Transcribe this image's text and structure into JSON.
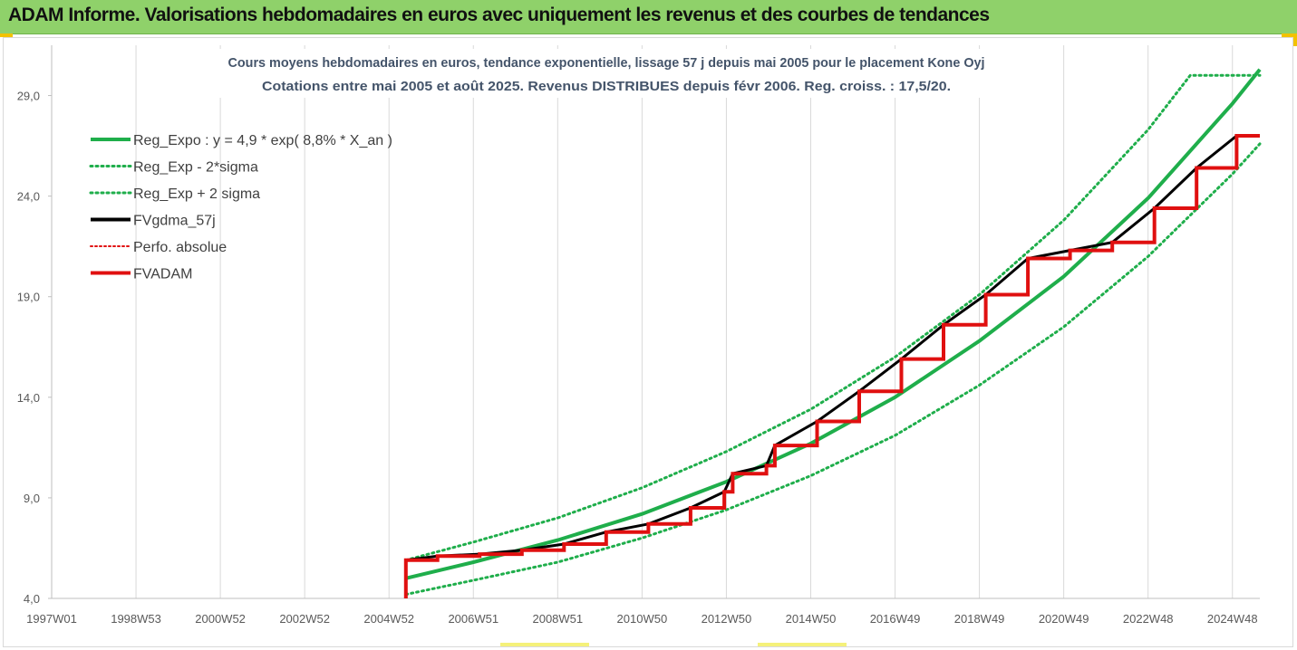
{
  "banner": {
    "title": "ADAM Informe. Valorisations hebdomadaires en euros avec uniquement les revenus et des courbes de tendances"
  },
  "colors": {
    "banner_bg": "#8fd16a",
    "reg_expo": "#1fae4b",
    "reg_exp_band": "#1fae4b",
    "fvgdma": "#000000",
    "perfo": "#e01010",
    "fvadam": "#e01010"
  },
  "chart_data": {
    "type": "line",
    "title": [
      "Cours moyens hebdomadaires en euros, tendance exponentielle, lissage 57 j depuis mai 2005 pour le placement Kone Oyj",
      "Cotations entre mai 2005 et août 2025. Revenus DISTRIBUES depuis févr 2006. Reg. croiss. : 17,5/20."
    ],
    "xlabel": "",
    "ylabel": "",
    "x_range": [
      1997.0,
      2025.65
    ],
    "ylim": [
      4.0,
      31.5
    ],
    "y_ticks": [
      "4,0",
      "9,0",
      "14,0",
      "19,0",
      "24,0",
      "29,0"
    ],
    "y_tick_values": [
      4,
      9,
      14,
      19,
      24,
      29
    ],
    "x_ticks": [
      "1997W01",
      "1998W53",
      "2000W52",
      "2002W52",
      "2004W52",
      "2006W51",
      "2008W51",
      "2010W50",
      "2012W50",
      "2014W50",
      "2016W49",
      "2018W49",
      "2020W49",
      "2022W48",
      "2024W48"
    ],
    "x_tick_values": [
      1997.0,
      1999.0,
      2001.0,
      2003.0,
      2005.0,
      2007.0,
      2009.0,
      2011.0,
      2013.0,
      2015.0,
      2017.0,
      2019.0,
      2021.0,
      2023.0,
      2025.0
    ],
    "grid": "vertical",
    "legend_position": "top-left",
    "series": [
      {
        "name": "Reg_Expo : y = 4,9 * exp( 8,8% *  X_an )",
        "style": "solid-thick-green",
        "x": [
          2005.4,
          2007,
          2009,
          2011,
          2013,
          2015,
          2017,
          2019,
          2021,
          2023,
          2025,
          2025.65
        ],
        "values": [
          5.0,
          5.8,
          6.9,
          8.2,
          9.8,
          11.7,
          14.0,
          16.8,
          20.0,
          23.9,
          28.6,
          30.3
        ]
      },
      {
        "name": "Reg_Exp - 2*sigma",
        "style": "dotted-green",
        "x": [
          2005.4,
          2007,
          2009,
          2011,
          2013,
          2015,
          2017,
          2019,
          2021,
          2023,
          2025,
          2025.65
        ],
        "values": [
          4.2,
          4.9,
          5.8,
          7.0,
          8.4,
          10.1,
          12.1,
          14.6,
          17.5,
          21.0,
          25.1,
          26.6
        ]
      },
      {
        "name": "Reg_Exp + 2 sigma",
        "style": "dotted-green",
        "x": [
          2005.4,
          2007,
          2009,
          2011,
          2013,
          2015,
          2017,
          2019,
          2021,
          2023,
          2024.0,
          2025.65
        ],
        "values": [
          5.9,
          6.8,
          8.0,
          9.5,
          11.3,
          13.4,
          16.0,
          19.1,
          22.8,
          27.3,
          30.0,
          30.0
        ]
      },
      {
        "name": "FVgdma_57j",
        "style": "solid-black",
        "x": [
          2005.4,
          2006.15,
          2007.15,
          2008.15,
          2009.15,
          2010.15,
          2011.15,
          2012.15,
          2012.95,
          2013.15,
          2013.95,
          2014.15,
          2015.15,
          2016.15,
          2017.15,
          2018.15,
          2019.15,
          2020.15,
          2021.15,
          2022.15,
          2023.15,
          2024.15,
          2025.1,
          2025.65
        ],
        "values": [
          5.9,
          6.1,
          6.2,
          6.4,
          6.7,
          7.3,
          7.7,
          8.5,
          9.3,
          10.2,
          10.6,
          11.6,
          12.8,
          14.3,
          15.9,
          17.6,
          19.1,
          20.9,
          21.3,
          21.7,
          23.4,
          25.4,
          27.0,
          27.0
        ]
      },
      {
        "name": "Perfo. absolue",
        "style": "dotted-red",
        "x": [],
        "values": []
      },
      {
        "name": "FVADAM",
        "style": "step-thick-red",
        "x": [
          2005.4,
          2006.15,
          2007.15,
          2008.15,
          2009.15,
          2010.15,
          2011.15,
          2012.15,
          2012.95,
          2013.15,
          2013.95,
          2014.15,
          2015.15,
          2016.15,
          2017.15,
          2018.15,
          2019.15,
          2020.15,
          2021.15,
          2022.15,
          2023.15,
          2024.15,
          2025.1,
          2025.65
        ],
        "values": [
          5.9,
          6.1,
          6.2,
          6.4,
          6.7,
          7.3,
          7.7,
          8.5,
          9.3,
          10.2,
          10.6,
          11.6,
          12.8,
          14.3,
          15.9,
          17.6,
          19.1,
          20.9,
          21.3,
          21.7,
          23.4,
          25.4,
          27.0,
          27.0
        ]
      }
    ]
  }
}
